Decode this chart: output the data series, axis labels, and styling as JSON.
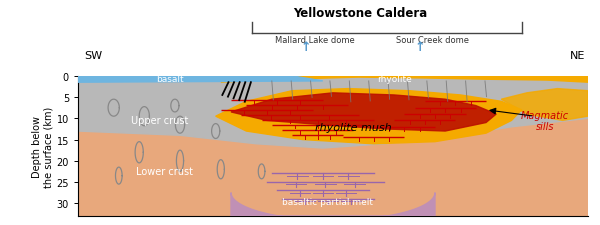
{
  "title": "Yellowstone Caldera",
  "subtitle_left": "Mallard Lake dome",
  "subtitle_right": "Sour Creek dome",
  "label_sw": "SW",
  "label_ne": "NE",
  "ylabel": "Depth below\nthe surface (km)",
  "depth_max": 33,
  "colors": {
    "background": "#ffffff",
    "lower_crust": "#E8A87C",
    "upper_crust": "#B8B8B8",
    "basalt": "#6EB5E0",
    "rhyolite_top": "#F5AA00",
    "rhyolite_mush": "#F5AA00",
    "rhyolite_hot": "#BB1100",
    "basaltic_melt": "#C090B5",
    "sills_red": "#CC0000",
    "sills_gray": "#888888",
    "sills_purple": "#9966AA",
    "bracket": "#444444",
    "dome": "#5599CC",
    "black": "#000000",
    "white": "#ffffff",
    "text_red": "#CC0000",
    "text_dark": "#333333"
  },
  "figsize": [
    6.0,
    2.26
  ],
  "dpi": 100
}
